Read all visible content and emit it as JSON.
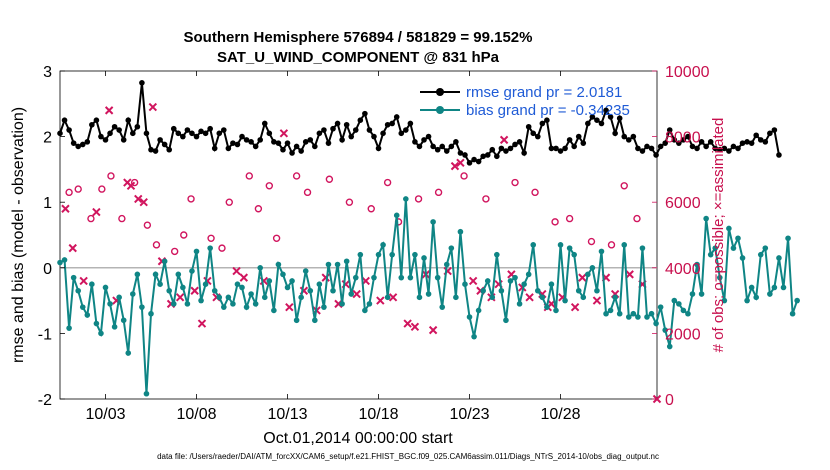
{
  "colors": {
    "rmse": "#000000",
    "bias": "#0f8585",
    "obs": "#d1155e",
    "zero": "#b4b4b4"
  },
  "chart_data": {
    "type": "line",
    "title": [
      "Southern Hemisphere 576894 / 581829 = 99.152%",
      "SAT_U_WIND_COMPONENT @ 831 hPa"
    ],
    "xlabel": "Oct.01,2014 00:00:00 start",
    "ylabel": "rmse and bias (model - observation)",
    "ylabel_right": "# of obs: o=possible; ×=assimilated",
    "xlim": [
      0.5,
      33.3
    ],
    "ylim": [
      -2,
      3
    ],
    "ylim_right": [
      0,
      10000
    ],
    "x_ticks": [
      3,
      8,
      13,
      18,
      23,
      28
    ],
    "x_tick_labels": [
      "10/03",
      "10/08",
      "10/13",
      "10/18",
      "10/23",
      "10/28"
    ],
    "y_ticks": [
      "-2",
      "-1",
      "0",
      "1",
      "2",
      "3"
    ],
    "y_ticks_right": [
      "0",
      "2000",
      "4000",
      "6000",
      "8000",
      "10000"
    ],
    "x_start": 0.5,
    "x_step": 0.25,
    "legend": [
      {
        "label": "rmse grand pr = 2.0181",
        "series": "rmse"
      },
      {
        "label": "bias grand pr = -0.34235",
        "series": "bias"
      }
    ],
    "series": [
      {
        "name": "rmse",
        "values": [
          2.05,
          2.25,
          2.1,
          1.9,
          1.85,
          1.88,
          1.92,
          2.18,
          2.25,
          2.0,
          1.95,
          2.05,
          2.15,
          2.1,
          1.95,
          2.25,
          2.05,
          2.15,
          2.82,
          2.05,
          1.8,
          1.78,
          1.95,
          1.88,
          1.8,
          2.12,
          2.05,
          2.0,
          2.1,
          2.05,
          2.0,
          2.08,
          2.05,
          2.12,
          1.82,
          2.05,
          2.1,
          1.82,
          1.9,
          1.88,
          2.0,
          1.95,
          1.92,
          1.85,
          1.95,
          2.2,
          2.05,
          1.92,
          1.9,
          1.8,
          1.9,
          1.75,
          1.85,
          1.78,
          1.92,
          1.95,
          1.85,
          2.05,
          2.1,
          1.9,
          2.12,
          2.2,
          1.95,
          2.18,
          2.0,
          2.1,
          2.25,
          2.35,
          2.1,
          2.0,
          1.82,
          2.05,
          2.18,
          2.2,
          2.3,
          2.05,
          2.1,
          2.2,
          1.92,
          1.85,
          1.95,
          2.0,
          1.85,
          1.8,
          1.85,
          1.78,
          1.85,
          1.92,
          1.75,
          1.72,
          1.6,
          1.65,
          1.62,
          1.7,
          1.72,
          1.8,
          1.7,
          1.82,
          1.78,
          1.82,
          1.88,
          1.92,
          1.75,
          2.15,
          2.05,
          2.0,
          2.2,
          2.25,
          1.82,
          1.82,
          1.78,
          1.82,
          1.95,
          1.85,
          2.0,
          1.9,
          2.2,
          2.3,
          2.25,
          2.2,
          2.4,
          2.3,
          2.05,
          2.28,
          2.0,
          1.95,
          2.0,
          1.82,
          1.78,
          1.85,
          1.82,
          1.72,
          1.85,
          1.9,
          2.1,
          1.95,
          1.9,
          1.95,
          2.0,
          1.85,
          1.82,
          1.92,
          1.85,
          1.92,
          1.82,
          1.8,
          1.82,
          1.78,
          1.85,
          1.82,
          1.9,
          1.92,
          1.9,
          2.02,
          1.95,
          1.92,
          2.05,
          2.1,
          1.72
        ]
      },
      {
        "name": "bias",
        "values": [
          0.08,
          0.12,
          -0.92,
          -0.15,
          -0.35,
          -0.6,
          -0.72,
          -0.25,
          -0.85,
          -1.0,
          -0.3,
          -0.55,
          -0.9,
          -0.45,
          -0.8,
          -1.3,
          -0.4,
          -0.1,
          -0.6,
          -1.92,
          -0.7,
          -0.1,
          -0.25,
          0.1,
          -0.35,
          -0.55,
          -0.1,
          -0.3,
          -0.55,
          -0.05,
          0.25,
          -0.5,
          -0.25,
          0.3,
          -0.35,
          -0.45,
          -0.6,
          -0.45,
          -0.55,
          -0.25,
          -0.3,
          -0.6,
          -0.4,
          -0.55,
          0.0,
          -0.45,
          -0.2,
          -0.65,
          0.05,
          -0.1,
          -0.3,
          -0.2,
          -0.8,
          -0.45,
          -0.05,
          -0.35,
          -0.8,
          -0.25,
          -0.6,
          0.05,
          -0.35,
          0.05,
          -0.55,
          0.1,
          -0.4,
          -0.15,
          0.2,
          -0.65,
          -0.55,
          -0.15,
          0.2,
          0.35,
          -0.45,
          0.2,
          0.8,
          -0.15,
          1.05,
          -0.15,
          0.2,
          -0.45,
          0.15,
          -0.4,
          0.7,
          -0.15,
          -0.6,
          0.05,
          0.3,
          -0.45,
          0.55,
          -0.25,
          -0.75,
          -1.05,
          -0.65,
          -0.35,
          -0.2,
          -0.45,
          0.2,
          -0.35,
          -0.8,
          -0.2,
          -0.15,
          -0.55,
          -0.25,
          -0.1,
          0.35,
          -0.35,
          -0.45,
          -0.6,
          -0.25,
          -0.65,
          0.35,
          -0.5,
          0.3,
          0.2,
          -0.35,
          -0.45,
          -0.1,
          0.0,
          -0.35,
          0.25,
          -0.7,
          -0.65,
          -0.45,
          -0.7,
          0.35,
          -0.75,
          -0.7,
          -0.75,
          0.3,
          -0.75,
          -0.7,
          -0.85,
          -0.6,
          -0.95,
          -1.2,
          -0.5,
          -0.55,
          -0.65,
          -0.7,
          -0.4,
          0.05,
          -0.4,
          0.75,
          0.2,
          0.3,
          -0.15,
          -0.5,
          0.6,
          0.3,
          0.45,
          0.15,
          -0.5,
          -0.3,
          -0.45,
          0.2,
          0.3,
          -0.4,
          -0.3,
          0.15,
          -0.3,
          0.45,
          -0.7,
          -0.5
        ]
      }
    ],
    "obs_possible": [
      {
        "x": 1.0,
        "v": 6300
      },
      {
        "x": 1.5,
        "v": 6400
      },
      {
        "x": 2.2,
        "v": 5500
      },
      {
        "x": 2.8,
        "v": 6400
      },
      {
        "x": 3.3,
        "v": 6800
      },
      {
        "x": 3.9,
        "v": 5500
      },
      {
        "x": 4.6,
        "v": 6600
      },
      {
        "x": 5.3,
        "v": 5300
      },
      {
        "x": 5.8,
        "v": 4700
      },
      {
        "x": 6.8,
        "v": 4500
      },
      {
        "x": 7.3,
        "v": 5000
      },
      {
        "x": 7.7,
        "v": 6100
      },
      {
        "x": 8.8,
        "v": 4900
      },
      {
        "x": 9.4,
        "v": 4600
      },
      {
        "x": 9.8,
        "v": 6000
      },
      {
        "x": 10.9,
        "v": 6800
      },
      {
        "x": 11.4,
        "v": 5800
      },
      {
        "x": 12.0,
        "v": 6500
      },
      {
        "x": 12.4,
        "v": 4900
      },
      {
        "x": 13.5,
        "v": 6800
      },
      {
        "x": 14.1,
        "v": 6300
      },
      {
        "x": 15.3,
        "v": 6700
      },
      {
        "x": 16.4,
        "v": 6000
      },
      {
        "x": 17.6,
        "v": 5800
      },
      {
        "x": 18.5,
        "v": 6600
      },
      {
        "x": 19.1,
        "v": 5400
      },
      {
        "x": 20.2,
        "v": 6100
      },
      {
        "x": 21.3,
        "v": 6300
      },
      {
        "x": 22.7,
        "v": 6800
      },
      {
        "x": 23.9,
        "v": 6100
      },
      {
        "x": 25.5,
        "v": 6600
      },
      {
        "x": 26.6,
        "v": 6300
      },
      {
        "x": 27.7,
        "v": 5400
      },
      {
        "x": 28.5,
        "v": 5500
      },
      {
        "x": 29.7,
        "v": 4800
      },
      {
        "x": 30.8,
        "v": 4700
      },
      {
        "x": 31.5,
        "v": 6500
      },
      {
        "x": 32.2,
        "v": 5500
      }
    ],
    "obs_assimilated": [
      {
        "x": 0.8,
        "v": 5800
      },
      {
        "x": 1.2,
        "v": 4600
      },
      {
        "x": 1.8,
        "v": 3600
      },
      {
        "x": 2.5,
        "v": 5700
      },
      {
        "x": 3.2,
        "v": 8800
      },
      {
        "x": 3.6,
        "v": 3000
      },
      {
        "x": 4.2,
        "v": 6600
      },
      {
        "x": 4.4,
        "v": 6500
      },
      {
        "x": 4.8,
        "v": 6100
      },
      {
        "x": 5.1,
        "v": 6000
      },
      {
        "x": 5.6,
        "v": 8900
      },
      {
        "x": 6.1,
        "v": 4200
      },
      {
        "x": 6.6,
        "v": 2900
      },
      {
        "x": 7.1,
        "v": 3100
      },
      {
        "x": 7.9,
        "v": 3300
      },
      {
        "x": 8.3,
        "v": 2300
      },
      {
        "x": 8.6,
        "v": 3600
      },
      {
        "x": 9.1,
        "v": 3100
      },
      {
        "x": 10.2,
        "v": 3900
      },
      {
        "x": 10.6,
        "v": 3700
      },
      {
        "x": 11.7,
        "v": 3600
      },
      {
        "x": 12.8,
        "v": 8100
      },
      {
        "x": 13.1,
        "v": 2800
      },
      {
        "x": 13.9,
        "v": 3300
      },
      {
        "x": 14.6,
        "v": 2700
      },
      {
        "x": 15.1,
        "v": 3700
      },
      {
        "x": 15.8,
        "v": 2900
      },
      {
        "x": 16.2,
        "v": 3500
      },
      {
        "x": 16.8,
        "v": 3200
      },
      {
        "x": 17.3,
        "v": 3600
      },
      {
        "x": 18.1,
        "v": 3000
      },
      {
        "x": 18.8,
        "v": 3100
      },
      {
        "x": 19.6,
        "v": 2300
      },
      {
        "x": 20.0,
        "v": 2200
      },
      {
        "x": 20.6,
        "v": 3800
      },
      {
        "x": 21.0,
        "v": 2100
      },
      {
        "x": 21.8,
        "v": 3900
      },
      {
        "x": 22.2,
        "v": 7100
      },
      {
        "x": 22.5,
        "v": 7200
      },
      {
        "x": 23.2,
        "v": 3600
      },
      {
        "x": 23.6,
        "v": 3300
      },
      {
        "x": 24.2,
        "v": 3100
      },
      {
        "x": 24.6,
        "v": 3500
      },
      {
        "x": 24.9,
        "v": 7900
      },
      {
        "x": 25.3,
        "v": 3800
      },
      {
        "x": 25.9,
        "v": 3400
      },
      {
        "x": 26.3,
        "v": 3100
      },
      {
        "x": 27.0,
        "v": 3200
      },
      {
        "x": 27.3,
        "v": 2800
      },
      {
        "x": 27.5,
        "v": 2900
      },
      {
        "x": 28.1,
        "v": 3100
      },
      {
        "x": 28.8,
        "v": 2800
      },
      {
        "x": 29.2,
        "v": 3700
      },
      {
        "x": 30.0,
        "v": 3000
      },
      {
        "x": 30.5,
        "v": 3700
      },
      {
        "x": 31.0,
        "v": 3200
      },
      {
        "x": 31.8,
        "v": 3800
      },
      {
        "x": 32.5,
        "v": 3500
      },
      {
        "x": 33.3,
        "v": 0
      }
    ],
    "footnote": "data file: /Users/raeder/DAI/ATM_forcXX/CAM6_setup/f.e21.FHIST_BGC.f09_025.CAM6assim.011/Diags_NTrS_2014-10/obs_diag_output.nc"
  }
}
